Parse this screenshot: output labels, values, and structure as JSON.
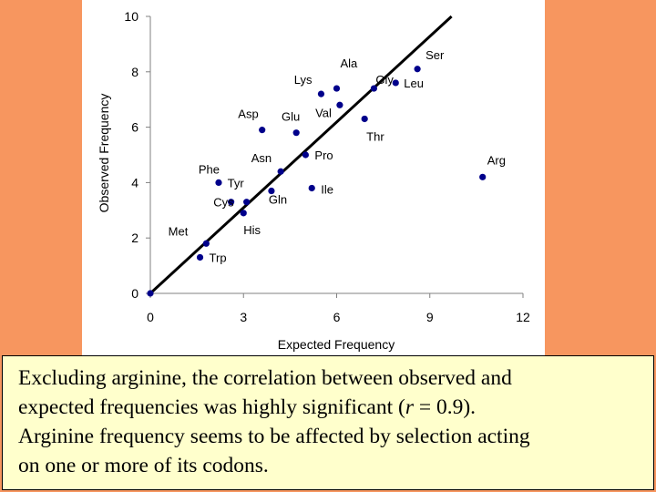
{
  "chart_data": {
    "type": "scatter",
    "xlabel": "Expected Frequency",
    "ylabel": "Observed Frequency",
    "xlim": [
      0,
      12
    ],
    "ylim": [
      0,
      10
    ],
    "x_ticks": [
      "0",
      "3",
      "6",
      "9",
      "12"
    ],
    "y_ticks": [
      "0",
      "2",
      "4",
      "6",
      "8",
      "10"
    ],
    "grid": false,
    "legend": "none",
    "point_color": "#00008B",
    "points": [
      {
        "label": "Ala",
        "x": 6.0,
        "y": 7.4
      },
      {
        "label": "Ser",
        "x": 8.6,
        "y": 8.1
      },
      {
        "label": "Leu",
        "x": 7.9,
        "y": 7.6
      },
      {
        "label": "Lys",
        "x": 5.5,
        "y": 7.2
      },
      {
        "label": "Gly",
        "x": 7.2,
        "y": 7.4
      },
      {
        "label": "Val",
        "x": 6.1,
        "y": 6.8
      },
      {
        "label": "Thr",
        "x": 6.9,
        "y": 6.3
      },
      {
        "label": "Asp",
        "x": 3.6,
        "y": 5.9
      },
      {
        "label": "Glu",
        "x": 4.7,
        "y": 5.8
      },
      {
        "label": "Pro",
        "x": 5.0,
        "y": 5.0
      },
      {
        "label": "Arg",
        "x": 10.7,
        "y": 4.2
      },
      {
        "label": "Asn",
        "x": 4.2,
        "y": 4.4
      },
      {
        "label": "Phe",
        "x": 2.2,
        "y": 4.0
      },
      {
        "label": "Ile",
        "x": 5.2,
        "y": 3.8
      },
      {
        "label": "Tyr",
        "x": 2.6,
        "y": 3.3
      },
      {
        "label": "Cys",
        "x": 3.1,
        "y": 3.3
      },
      {
        "label": "Gln",
        "x": 3.9,
        "y": 3.7
      },
      {
        "label": "His",
        "x": 3.0,
        "y": 2.9
      },
      {
        "label": "Met",
        "x": 1.8,
        "y": 1.8
      },
      {
        "label": "Trp",
        "x": 1.6,
        "y": 1.3
      },
      {
        "label": "",
        "x": 0.0,
        "y": 0.0
      }
    ],
    "fit_line": {
      "x": [
        0,
        9.7
      ],
      "y": [
        0,
        10
      ]
    }
  },
  "caption": {
    "line1": "Excluding arginine, the correlation between observed and",
    "line2_pre": "expected frequencies was highly significant (",
    "line2_r": "r",
    "line2_post": " = 0.9).",
    "line3": "Arginine frequency seems to be affected by selection acting",
    "line4": "on one or more of its codons."
  }
}
